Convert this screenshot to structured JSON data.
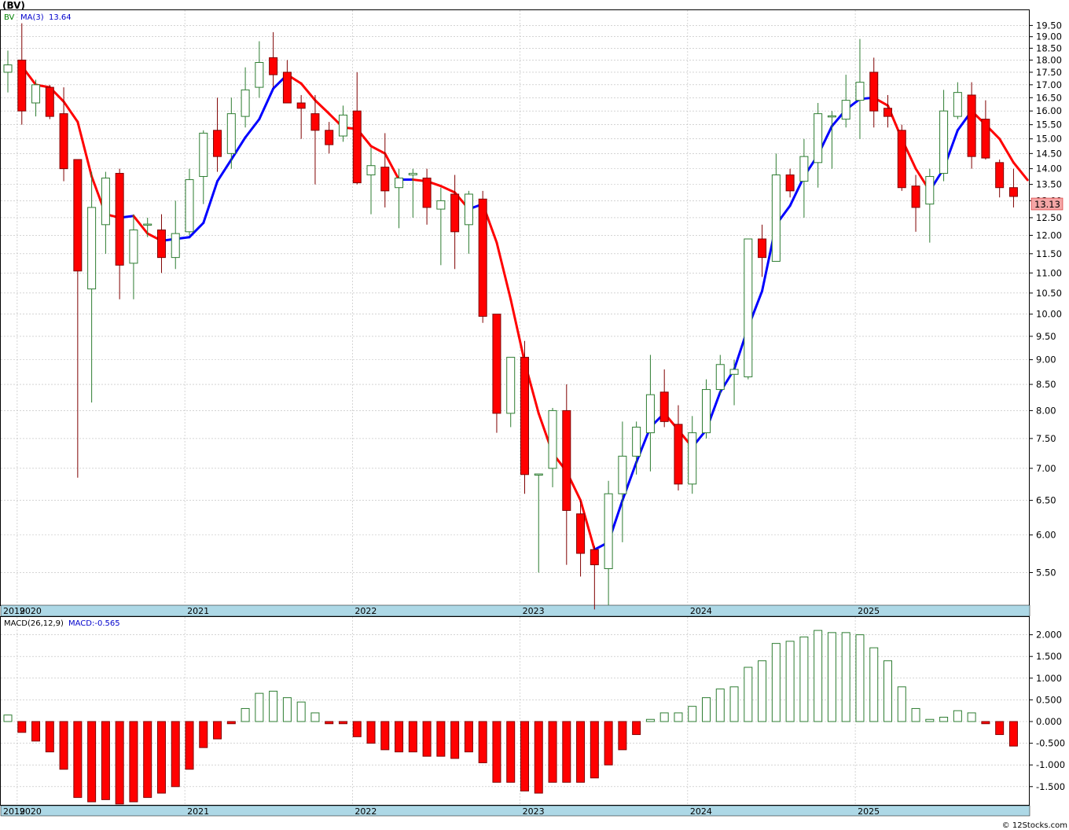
{
  "title": "(BV)",
  "footer": "© 12Stocks.com",
  "price_legend": {
    "symbol": "BV",
    "ma_label": "MA(3)",
    "ma_value": "13.64"
  },
  "macd_legend": {
    "label": "MACD(26,12,9)",
    "value_label": "MACD:-0.565"
  },
  "last_price_label": "13.13",
  "colors": {
    "up_candle": "#008000",
    "down_candle": "#ff0000",
    "ma_up": "#0000ff",
    "ma_down": "#ff0000",
    "axis_band": "#add8e6",
    "grid": "#bbbbbb"
  },
  "x_axis_labels": [
    "2019",
    "2020",
    "2021",
    "2022",
    "2023",
    "2024",
    "2025"
  ],
  "price_ticks": [
    "5.50",
    "6.00",
    "6.50",
    "7.00",
    "7.50",
    "8.00",
    "8.50",
    "9.00",
    "9.50",
    "10.00",
    "10.50",
    "11.00",
    "11.50",
    "12.00",
    "12.50",
    "13.00",
    "13.50",
    "14.00",
    "14.50",
    "15.00",
    "15.50",
    "16.00",
    "16.50",
    "17.00",
    "17.50",
    "18.00",
    "18.50",
    "19.00",
    "19.50"
  ],
  "macd_ticks": [
    "-1.500",
    "-1.000",
    "-0.500",
    "0.000",
    "0.500",
    "1.000",
    "1.500",
    "2.000"
  ],
  "chart_data": {
    "type": "candlestick",
    "interval": "monthly",
    "scale": "log",
    "ylim": [
      5.1,
      20.2
    ],
    "x_start": "2019-12",
    "ohlc": [
      [
        17.5,
        18.4,
        16.7,
        17.8
      ],
      [
        18.0,
        19.6,
        15.5,
        16.0
      ],
      [
        16.3,
        17.2,
        15.8,
        17.0
      ],
      [
        16.9,
        17.0,
        15.7,
        15.8
      ],
      [
        15.9,
        16.9,
        13.6,
        14.0
      ],
      [
        14.3,
        14.3,
        6.85,
        11.05
      ],
      [
        10.6,
        13.9,
        8.15,
        12.8
      ],
      [
        12.3,
        13.9,
        11.5,
        13.7
      ],
      [
        13.85,
        14.0,
        10.35,
        11.2
      ],
      [
        11.25,
        12.6,
        10.35,
        12.15
      ],
      [
        12.3,
        12.5,
        11.95,
        12.3
      ],
      [
        12.15,
        12.6,
        11.0,
        11.4
      ],
      [
        11.4,
        13.0,
        11.1,
        12.05
      ],
      [
        12.1,
        14.0,
        12.0,
        13.65
      ],
      [
        13.75,
        15.3,
        12.9,
        15.2
      ],
      [
        15.3,
        16.5,
        13.9,
        14.4
      ],
      [
        14.5,
        16.5,
        14.0,
        15.9
      ],
      [
        15.8,
        17.7,
        15.4,
        16.8
      ],
      [
        16.9,
        18.8,
        16.5,
        17.9
      ],
      [
        18.1,
        19.2,
        16.9,
        17.4
      ],
      [
        17.5,
        18.0,
        16.3,
        16.3
      ],
      [
        16.3,
        16.6,
        15.0,
        16.1
      ],
      [
        15.9,
        16.6,
        13.5,
        15.3
      ],
      [
        15.3,
        15.6,
        14.5,
        14.8
      ],
      [
        15.1,
        16.2,
        14.9,
        15.85
      ],
      [
        16.0,
        17.5,
        13.5,
        13.55
      ],
      [
        13.8,
        14.7,
        12.6,
        14.1
      ],
      [
        14.05,
        15.2,
        12.8,
        13.3
      ],
      [
        13.4,
        14.0,
        12.2,
        13.7
      ],
      [
        13.8,
        14.0,
        12.5,
        13.85
      ],
      [
        13.7,
        14.0,
        12.3,
        12.8
      ],
      [
        12.75,
        13.4,
        11.2,
        13.0
      ],
      [
        13.2,
        13.8,
        11.1,
        12.1
      ],
      [
        12.3,
        13.3,
        11.5,
        13.2
      ],
      [
        13.05,
        13.3,
        9.8,
        9.95
      ],
      [
        10.0,
        10.0,
        7.6,
        7.95
      ],
      [
        7.95,
        9.05,
        7.7,
        9.05
      ],
      [
        9.05,
        9.4,
        6.6,
        6.9
      ],
      [
        6.9,
        6.9,
        5.5,
        6.9
      ],
      [
        7.0,
        8.05,
        6.7,
        8.0
      ],
      [
        8.0,
        8.5,
        5.6,
        6.35
      ],
      [
        6.3,
        6.5,
        5.45,
        5.75
      ],
      [
        5.8,
        5.85,
        5.05,
        5.6
      ],
      [
        5.55,
        6.8,
        5.1,
        6.6
      ],
      [
        6.6,
        7.8,
        5.9,
        7.2
      ],
      [
        7.2,
        7.8,
        6.9,
        7.7
      ],
      [
        7.6,
        9.1,
        6.95,
        8.3
      ],
      [
        8.35,
        8.8,
        7.7,
        7.8
      ],
      [
        7.75,
        8.1,
        6.65,
        6.75
      ],
      [
        6.75,
        7.9,
        6.6,
        7.6
      ],
      [
        7.6,
        8.6,
        7.5,
        8.4
      ],
      [
        8.4,
        9.1,
        8.3,
        8.9
      ],
      [
        8.7,
        9.0,
        8.1,
        8.8
      ],
      [
        8.65,
        11.9,
        8.6,
        11.9
      ],
      [
        11.9,
        12.3,
        10.9,
        11.4
      ],
      [
        11.3,
        14.5,
        11.3,
        13.8
      ],
      [
        13.8,
        14.0,
        13.1,
        13.3
      ],
      [
        13.6,
        15.0,
        12.5,
        14.4
      ],
      [
        14.2,
        16.3,
        13.4,
        15.9
      ],
      [
        15.8,
        16.0,
        14.0,
        15.8
      ],
      [
        15.7,
        17.4,
        15.4,
        16.4
      ],
      [
        16.4,
        18.9,
        15.0,
        17.1
      ],
      [
        17.5,
        18.1,
        15.4,
        16.0
      ],
      [
        16.1,
        16.6,
        15.4,
        15.8
      ],
      [
        15.3,
        15.5,
        13.3,
        13.4
      ],
      [
        13.45,
        13.8,
        12.1,
        12.8
      ],
      [
        12.9,
        14.0,
        11.8,
        13.75
      ],
      [
        13.85,
        16.8,
        13.6,
        16.0
      ],
      [
        15.8,
        17.1,
        15.7,
        16.7
      ],
      [
        16.6,
        17.1,
        14.0,
        14.4
      ],
      [
        15.7,
        16.4,
        14.3,
        14.35
      ],
      [
        14.2,
        14.3,
        13.1,
        13.4
      ],
      [
        13.4,
        14.0,
        12.8,
        13.13
      ]
    ],
    "ma3": [
      17.75,
      17.0,
      16.9,
      16.35,
      15.6,
      13.75,
      12.6,
      12.5,
      12.55,
      12.05,
      11.85,
      11.9,
      11.95,
      12.35,
      13.6,
      14.3,
      15.05,
      15.7,
      16.85,
      17.4,
      17.05,
      16.4,
      15.9,
      15.4,
      15.35,
      14.75,
      14.5,
      13.65,
      13.65,
      13.6,
      13.45,
      13.25,
      12.75,
      12.9,
      11.8,
      10.35,
      8.95,
      7.95,
      7.25,
      6.95,
      6.5,
      5.8,
      5.9,
      6.5,
      7.1,
      7.7,
      7.95,
      7.65,
      7.35,
      7.65,
      8.35,
      8.8,
      9.7,
      10.55,
      12.3,
      12.85,
      13.75,
      14.45,
      15.45,
      16.05,
      16.45,
      16.5,
      16.2,
      15.0,
      14.0,
      13.3,
      14.0,
      15.3,
      16.0,
      15.5,
      15.0,
      14.2,
      13.64
    ],
    "macd": [
      0.15,
      -0.25,
      -0.45,
      -0.7,
      -1.1,
      -1.75,
      -1.85,
      -1.8,
      -1.9,
      -1.85,
      -1.75,
      -1.65,
      -1.5,
      -1.1,
      -0.6,
      -0.4,
      -0.05,
      0.3,
      0.65,
      0.7,
      0.55,
      0.45,
      0.2,
      -0.05,
      -0.05,
      -0.35,
      -0.5,
      -0.65,
      -0.7,
      -0.7,
      -0.8,
      -0.8,
      -0.85,
      -0.7,
      -0.95,
      -1.4,
      -1.4,
      -1.6,
      -1.65,
      -1.4,
      -1.4,
      -1.4,
      -1.3,
      -1.0,
      -0.65,
      -0.3,
      0.05,
      0.2,
      0.2,
      0.35,
      0.55,
      0.75,
      0.8,
      1.25,
      1.4,
      1.8,
      1.85,
      1.95,
      2.1,
      2.05,
      2.05,
      2.0,
      1.7,
      1.4,
      0.8,
      0.3,
      0.05,
      0.1,
      0.25,
      0.2,
      -0.05,
      -0.3,
      -0.565
    ]
  }
}
